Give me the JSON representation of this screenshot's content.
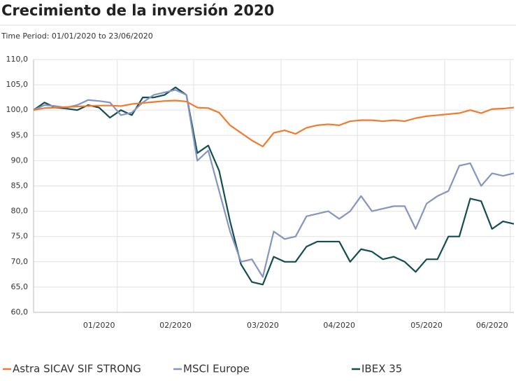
{
  "chart_data": {
    "type": "line",
    "title": "Crecimiento de la inversión 2020",
    "subtitle": "Time Period: 01/01/2020 to 23/06/2020",
    "categories": [
      null,
      null,
      null,
      null,
      null,
      null,
      "01/2020",
      null,
      null,
      null,
      null,
      null,
      null,
      "02/2020",
      null,
      null,
      null,
      null,
      null,
      null,
      null,
      "03/2020",
      null,
      null,
      null,
      null,
      null,
      null,
      "04/2020",
      null,
      null,
      null,
      null,
      null,
      null,
      null,
      "05/2020",
      null,
      null,
      null,
      null,
      null,
      "06/2020",
      null,
      null
    ],
    "series": [
      {
        "name": "Astra SICAV SIF STRONG",
        "color": "#f07b2e",
        "values": [
          100,
          100.4,
          100.5,
          100.6,
          100.7,
          100.8,
          100.9,
          100.9,
          100.8,
          101.2,
          101.4,
          101.6,
          101.8,
          101.9,
          101.7,
          100.5,
          100.4,
          99.5,
          97,
          95.5,
          94,
          92.8,
          95.5,
          96,
          95.3,
          96.5,
          97,
          97.2,
          97,
          97.8,
          98,
          98,
          97.8,
          98,
          97.8,
          98.4,
          98.8,
          99,
          99.2,
          99.4,
          100,
          99.4,
          100.2,
          100.3,
          100.5
        ]
      },
      {
        "name": "MSCI Europe",
        "color": "#8494c4",
        "values": [
          100,
          101,
          100.8,
          100.5,
          101,
          102,
          101.8,
          101.5,
          99,
          99.5,
          101.5,
          103,
          103.5,
          104,
          103,
          90,
          92,
          84,
          76,
          70,
          70.5,
          67,
          76,
          74.5,
          75,
          79,
          79.5,
          80,
          78.5,
          80,
          83,
          80,
          80.5,
          81,
          81,
          76.5,
          81.5,
          83,
          84,
          89,
          89.5,
          85,
          87.5,
          87,
          87.5
        ]
      },
      {
        "name": "IBEX 35",
        "color": "#134e4f",
        "values": [
          100,
          101.5,
          100.5,
          100.3,
          100,
          101,
          100.5,
          98.5,
          100,
          99,
          102.5,
          102.5,
          103,
          104.5,
          103,
          91.5,
          93,
          88,
          78,
          69.5,
          66,
          65.5,
          71,
          70,
          70,
          73,
          74,
          74,
          74,
          70,
          72.5,
          72,
          70.5,
          71,
          70,
          68,
          70.5,
          70.5,
          75,
          75,
          82.5,
          82,
          76.5,
          78,
          77.5
        ]
      }
    ],
    "ylim": [
      60,
      110
    ],
    "yticks": [
      {
        "value": 60,
        "label": "60,0"
      },
      {
        "value": 65,
        "label": "65,0"
      },
      {
        "value": 70,
        "label": "70,0"
      },
      {
        "value": 75,
        "label": "75,0"
      },
      {
        "value": 80,
        "label": "80,0"
      },
      {
        "value": 85,
        "label": "85,0"
      },
      {
        "value": 90,
        "label": "90,0"
      },
      {
        "value": 95,
        "label": "95,0"
      },
      {
        "value": 100,
        "label": "100,0"
      },
      {
        "value": 105,
        "label": "105,0"
      },
      {
        "value": 110,
        "label": "110,0"
      }
    ],
    "grid": true
  }
}
